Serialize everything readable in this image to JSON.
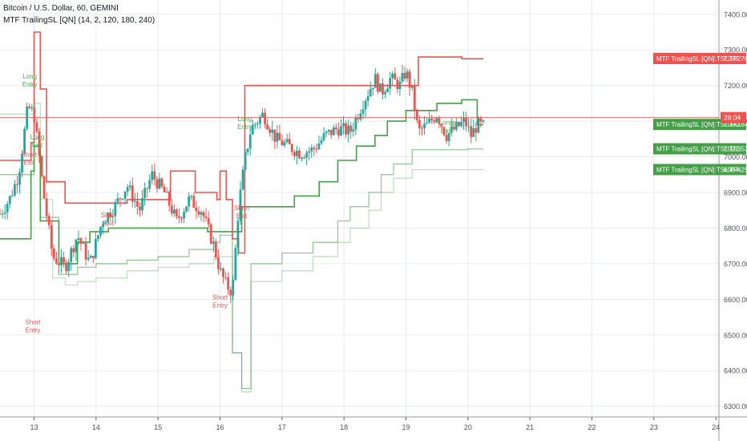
{
  "header": {
    "symbol_line": "Bitcoin / U.S. Dollar, 60, GEMINI",
    "indicator_line": "MTF TrailingSL [QN] (14, 2, 120, 180, 240)"
  },
  "colors": {
    "up": "#26a69a",
    "down": "#ef5350",
    "red_line": "#ef5350",
    "green_line": "#43a047",
    "grid": "#e8ecf2",
    "axis_text": "#50535e",
    "price_line": "#e05c5c"
  },
  "price_axis": {
    "ticks": [
      "7400.00",
      "7300.00",
      "7200.00",
      "7100.00",
      "7000.00",
      "6900.00",
      "6800.00",
      "6700.00",
      "6600.00",
      "6500.00",
      "6400.00",
      "6300.00"
    ]
  },
  "time_axis": {
    "ticks": [
      "13",
      "14",
      "15",
      "16",
      "17",
      "18",
      "19",
      "20",
      "21",
      "22",
      "23",
      "24"
    ]
  },
  "labels": {
    "tf2": {
      "text": "MTF TrailingSL [QN]:TSL TF2",
      "value": "7275.76"
    },
    "last": {
      "value": "28:04"
    },
    "tf1": {
      "text": "MTF TrailingSL [QN]:TSL TF1",
      "value": "7090.84"
    },
    "tf3": {
      "text": "MTF TrailingSL [QN]:TSL TF3",
      "value": "7022.53"
    },
    "tf4": {
      "text": "MTF TrailingSL [QN]:TSL TF4",
      "value": "6964.25"
    }
  },
  "chart_data": {
    "type": "line",
    "title": "Bitcoin / U.S. Dollar, 60, GEMINI",
    "y_range": [
      6270,
      7440
    ],
    "x_range": [
      12.45,
      24.05
    ],
    "grid": true,
    "price": {
      "x": [
        12.45,
        12.6,
        12.75,
        12.9,
        13.0,
        13.15,
        13.3,
        13.5,
        13.7,
        13.9,
        14.1,
        14.3,
        14.5,
        14.7,
        14.9,
        15.1,
        15.3,
        15.5,
        15.7,
        15.9,
        16.0,
        16.1,
        16.2,
        16.3,
        16.4,
        16.5,
        16.7,
        16.9,
        17.1,
        17.3,
        17.5,
        17.7,
        17.9,
        18.1,
        18.3,
        18.5,
        18.6,
        18.75,
        18.9,
        19.0,
        19.1,
        19.2,
        19.35,
        19.5,
        19.65,
        19.8,
        19.95,
        20.05,
        20.15,
        20.25
      ],
      "values": [
        6840,
        6880,
        6950,
        7140,
        7120,
        6900,
        6720,
        6690,
        6780,
        6700,
        6820,
        6860,
        6920,
        6850,
        6950,
        6900,
        6820,
        6880,
        6850,
        6750,
        6680,
        6640,
        6620,
        6860,
        6990,
        7080,
        7120,
        7050,
        7030,
        7010,
        7020,
        7060,
        7080,
        7070,
        7150,
        7220,
        7180,
        7220,
        7200,
        7240,
        7180,
        7070,
        7090,
        7120,
        7060,
        7080,
        7100,
        7060,
        7090,
        7085
      ]
    },
    "last_price": 7110,
    "markers": [
      {
        "text": "Long\nEntry",
        "x": 12.93,
        "y": 7220,
        "color": "green"
      },
      {
        "text": "Long\nExit",
        "x": 13.05,
        "y": 7050,
        "color": "green"
      },
      {
        "text": "Short\nExit",
        "x": 12.92,
        "y": 7000,
        "color": "red"
      },
      {
        "text": "Short\nEntry",
        "x": 12.98,
        "y": 6530,
        "color": "red"
      },
      {
        "text": "Short\nExit",
        "x": 14.2,
        "y": 6830,
        "color": "red"
      },
      {
        "text": "Short\nExit",
        "x": 16.35,
        "y": 6850,
        "color": "red"
      },
      {
        "text": "Short\nEntry",
        "x": 16.0,
        "y": 6600,
        "color": "red"
      },
      {
        "text": "Long\nEntry",
        "x": 16.4,
        "y": 7100,
        "color": "green"
      },
      {
        "text": "Long\nExit",
        "x": 19.65,
        "y": 7090,
        "color": "green"
      }
    ],
    "series": [
      {
        "name": "TSL TF1",
        "x": [
          12.45,
          12.65,
          12.8,
          12.95,
          13.0,
          13.1,
          13.4,
          13.7,
          13.9,
          14.2,
          14.6,
          15.0,
          15.4,
          15.8,
          16.0,
          16.2,
          16.35,
          16.5,
          16.8,
          17.2,
          17.6,
          17.9,
          18.2,
          18.5,
          18.7,
          19.0,
          19.5,
          19.9,
          20.1,
          20.15,
          20.25
        ],
        "values": [
          6770,
          6770,
          6770,
          6960,
          7030,
          6820,
          6700,
          6760,
          6790,
          6800,
          6800,
          6800,
          6800,
          6790,
          6790,
          6790,
          6860,
          6860,
          6860,
          6890,
          6930,
          6990,
          7030,
          7060,
          7100,
          7130,
          7150,
          7160,
          7160,
          7090,
          7090
        ]
      },
      {
        "name": "TSL TF2",
        "x": [
          12.45,
          12.7,
          12.85,
          12.95,
          13.0,
          13.05,
          13.1,
          13.2,
          13.5,
          13.9,
          14.5,
          15.2,
          15.6,
          15.95,
          16.0,
          16.1,
          16.2,
          16.3,
          16.4,
          16.7,
          17.0,
          17.5,
          18.0,
          18.2,
          18.6,
          19.0,
          19.15,
          19.2,
          19.5,
          19.8,
          19.9,
          20.0,
          20.1,
          20.25
        ],
        "values": [
          6990,
          6990,
          6990,
          7040,
          7350,
          7350,
          7190,
          6930,
          6870,
          6870,
          6880,
          6960,
          6900,
          6880,
          6960,
          6880,
          6770,
          6730,
          7200,
          7200,
          7200,
          7200,
          7200,
          7200,
          7200,
          7200,
          7200,
          7280,
          7280,
          7280,
          7275,
          7275,
          7275,
          7275
        ]
      },
      {
        "name": "TSL TF3",
        "x": [
          12.45,
          12.7,
          12.9,
          13.0,
          13.1,
          13.4,
          13.5,
          13.7,
          14.0,
          14.5,
          15.0,
          15.5,
          15.9,
          16.0,
          16.2,
          16.35,
          16.4,
          16.5,
          17.0,
          17.5,
          17.9,
          18.1,
          18.4,
          18.6,
          18.8,
          19.1,
          19.3,
          19.5,
          19.8,
          20.0,
          20.25
        ],
        "values": [
          6950,
          6950,
          6950,
          7050,
          6830,
          6670,
          6670,
          6690,
          6700,
          6710,
          6720,
          6740,
          6760,
          6780,
          6450,
          6350,
          6350,
          6700,
          6730,
          6760,
          6820,
          6860,
          6900,
          6950,
          6980,
          7020,
          7020,
          7020,
          7020,
          7022,
          7022
        ]
      },
      {
        "name": "TSL TF4",
        "x": [
          12.45,
          12.7,
          12.9,
          13.0,
          13.1,
          13.3,
          13.5,
          13.7,
          14.0,
          14.5,
          15.0,
          15.5,
          15.9,
          16.0,
          16.2,
          16.35,
          16.4,
          16.5,
          17.0,
          17.5,
          17.9,
          18.1,
          18.4,
          18.6,
          18.8,
          19.1,
          19.3,
          19.5,
          19.8,
          20.0,
          20.25
        ],
        "values": [
          7120,
          7120,
          7120,
          7150,
          6880,
          6660,
          6640,
          6650,
          6660,
          6680,
          6690,
          6700,
          6720,
          6720,
          6450,
          6340,
          6340,
          6650,
          6680,
          6720,
          6760,
          6800,
          6850,
          6900,
          6940,
          6964,
          6964,
          6964,
          6964,
          6964,
          6964
        ]
      }
    ]
  }
}
